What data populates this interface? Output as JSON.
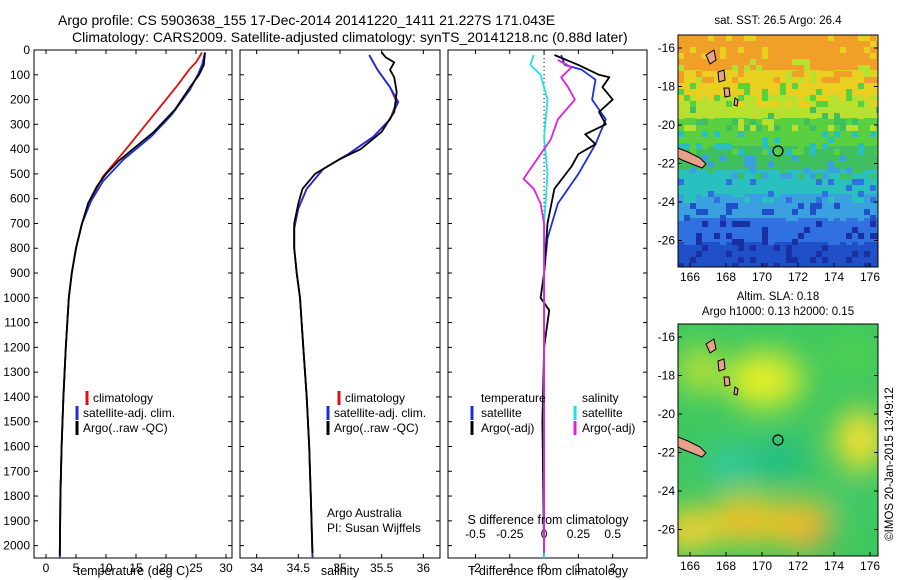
{
  "titles": {
    "line1": "Argo profile: CS 5903638_155 17-Dec-2014 20141220_1411 21.227S 171.043E",
    "line2": "Climatology: CARS2009. Satellite-adjusted climatology: synTS_20141218.nc (0.88d later)"
  },
  "colors": {
    "climatology": "#e01010",
    "satellite": "#1a2ee0",
    "argo": "#000000",
    "s_satellite": "#20e0e8",
    "s_argo": "#e020e0"
  },
  "chart_data": [
    {
      "type": "line",
      "panel": "temperature",
      "xlabel": "temperature (deg C)",
      "ylabel": "",
      "xlim": [
        -2,
        31
      ],
      "ylim": [
        2050,
        0
      ],
      "xticks": [
        0,
        5,
        10,
        15,
        20,
        25,
        30
      ],
      "yticks": [
        0,
        100,
        200,
        300,
        400,
        500,
        600,
        700,
        800,
        900,
        1000,
        1100,
        1200,
        1300,
        1400,
        1500,
        1600,
        1700,
        1800,
        1900,
        2000
      ],
      "legend": [
        "climatology",
        "satellite-adj. clim.",
        "Argo(..raw -QC)"
      ],
      "series": [
        {
          "name": "climatology",
          "color_key": "climatology",
          "points": [
            [
              26,
              10
            ],
            [
              25,
              50
            ],
            [
              24,
              75
            ],
            [
              22,
              140
            ],
            [
              19,
              230
            ],
            [
              16,
              320
            ],
            [
              13,
              410
            ],
            [
              9.5,
              510
            ],
            [
              7.5,
              600
            ],
            [
              6,
              700
            ],
            [
              5,
              800
            ],
            [
              4.3,
              900
            ],
            [
              3.8,
              1000
            ],
            [
              3.3,
              1200
            ],
            [
              2.9,
              1400
            ],
            [
              2.6,
              1600
            ],
            [
              2.4,
              1800
            ],
            [
              2.3,
              2050
            ]
          ]
        },
        {
          "name": "satellite-adj. clim.",
          "color_key": "satellite",
          "points": [
            [
              26.5,
              10
            ],
            [
              26,
              60
            ],
            [
              25.3,
              100
            ],
            [
              24,
              160
            ],
            [
              21,
              260
            ],
            [
              17.5,
              350
            ],
            [
              13,
              440
            ],
            [
              9.5,
              530
            ],
            [
              7.5,
              610
            ],
            [
              6,
              700
            ],
            [
              5,
              800
            ],
            [
              4.3,
              900
            ],
            [
              3.8,
              1000
            ],
            [
              3.3,
              1200
            ],
            [
              2.9,
              1400
            ],
            [
              2.6,
              1600
            ],
            [
              2.4,
              1800
            ],
            [
              2.3,
              2050
            ]
          ]
        },
        {
          "name": "Argo(..raw -QC)",
          "color_key": "argo",
          "points": [
            [
              26.5,
              10
            ],
            [
              26.3,
              60
            ],
            [
              25.5,
              100
            ],
            [
              24,
              150
            ],
            [
              21.5,
              240
            ],
            [
              18,
              330
            ],
            [
              14.5,
              400
            ],
            [
              12,
              450
            ],
            [
              10,
              500
            ],
            [
              8.5,
              550
            ],
            [
              7,
              620
            ],
            [
              6,
              700
            ],
            [
              5,
              800
            ],
            [
              4.3,
              900
            ],
            [
              3.8,
              1000
            ],
            [
              3.3,
              1200
            ],
            [
              2.9,
              1400
            ],
            [
              2.6,
              1600
            ],
            [
              2.4,
              1800
            ],
            [
              2.3,
              2040
            ]
          ]
        }
      ]
    },
    {
      "type": "line",
      "panel": "salinity",
      "xlabel": "salinity",
      "xlim": [
        33.8,
        36.2
      ],
      "ylim": [
        2050,
        0
      ],
      "xticks": [
        34,
        34.5,
        35,
        35.5,
        36
      ],
      "legend": [
        "climatology",
        "satellite-adj. clim.",
        "Argo(..raw -QC)"
      ],
      "series": [
        {
          "name": "climatology",
          "color_key": "climatology",
          "points": [
            [
              35.35,
              20
            ],
            [
              35.45,
              80
            ],
            [
              35.6,
              150
            ],
            [
              35.68,
              210
            ],
            [
              35.6,
              280
            ],
            [
              35.4,
              350
            ],
            [
              35.1,
              420
            ],
            [
              34.8,
              480
            ],
            [
              34.6,
              560
            ],
            [
              34.5,
              640
            ],
            [
              34.45,
              720
            ],
            [
              34.45,
              800
            ],
            [
              34.48,
              900
            ],
            [
              34.52,
              1000
            ],
            [
              34.56,
              1200
            ],
            [
              34.6,
              1400
            ],
            [
              34.63,
              1600
            ],
            [
              34.65,
              1800
            ],
            [
              34.67,
              2050
            ]
          ]
        },
        {
          "name": "satellite-adj. clim.",
          "color_key": "satellite",
          "points": [
            [
              35.35,
              20
            ],
            [
              35.45,
              80
            ],
            [
              35.6,
              150
            ],
            [
              35.7,
              210
            ],
            [
              35.6,
              280
            ],
            [
              35.4,
              350
            ],
            [
              35.1,
              420
            ],
            [
              34.8,
              480
            ],
            [
              34.6,
              560
            ],
            [
              34.5,
              640
            ],
            [
              34.45,
              720
            ],
            [
              34.45,
              800
            ],
            [
              34.48,
              900
            ],
            [
              34.52,
              1000
            ],
            [
              34.56,
              1200
            ],
            [
              34.6,
              1400
            ],
            [
              34.63,
              1600
            ],
            [
              34.65,
              1800
            ],
            [
              34.67,
              2050
            ]
          ]
        },
        {
          "name": "Argo(..raw -QC)",
          "color_key": "argo",
          "points": [
            [
              35.5,
              10
            ],
            [
              35.55,
              30
            ],
            [
              35.65,
              50
            ],
            [
              35.6,
              80
            ],
            [
              35.65,
              110
            ],
            [
              35.68,
              170
            ],
            [
              35.65,
              250
            ],
            [
              35.5,
              330
            ],
            [
              35.25,
              400
            ],
            [
              35.0,
              440
            ],
            [
              34.7,
              500
            ],
            [
              34.55,
              560
            ],
            [
              34.5,
              620
            ],
            [
              34.45,
              700
            ],
            [
              34.45,
              800
            ],
            [
              34.48,
              900
            ],
            [
              34.52,
              1000
            ],
            [
              34.56,
              1200
            ],
            [
              34.6,
              1400
            ],
            [
              34.63,
              1600
            ],
            [
              34.65,
              1800
            ],
            [
              34.67,
              2030
            ]
          ]
        }
      ]
    },
    {
      "type": "line",
      "panel": "differences",
      "xlabel_top": "S difference from climatology",
      "xlabel": "T difference from climatology",
      "xlim": [
        -2.8,
        3
      ],
      "ylim": [
        2050,
        0
      ],
      "xticks": [
        -2,
        -1,
        0,
        1,
        2
      ],
      "xticks_top": [
        "-0.5",
        "-0.25",
        "0",
        "0.25",
        "0.5"
      ],
      "legend_t": [
        "temperature",
        "satellite",
        "Argo(-adj)"
      ],
      "legend_s": [
        "salinity",
        "satellite",
        "Argo(-adj)"
      ],
      "series": [
        {
          "name": "T satellite",
          "color_key": "satellite",
          "points": [
            [
              0.5,
              20
            ],
            [
              0.6,
              60
            ],
            [
              1.1,
              80
            ],
            [
              1.5,
              120
            ],
            [
              1.4,
              200
            ],
            [
              1.8,
              280
            ],
            [
              1.5,
              380
            ],
            [
              1.0,
              500
            ],
            [
              0.4,
              620
            ],
            [
              0.1,
              760
            ],
            [
              0,
              900
            ],
            [
              0,
              2050
            ]
          ]
        },
        {
          "name": "T Argo(-adj)",
          "color_key": "argo",
          "points": [
            [
              0.3,
              20
            ],
            [
              1.0,
              60
            ],
            [
              1.6,
              100
            ],
            [
              1.9,
              110
            ],
            [
              1.7,
              150
            ],
            [
              2.0,
              200
            ],
            [
              1.6,
              250
            ],
            [
              1.8,
              300
            ],
            [
              1.2,
              340
            ],
            [
              1.5,
              380
            ],
            [
              1.0,
              420
            ],
            [
              0.8,
              470
            ],
            [
              0.3,
              560
            ],
            [
              0.1,
              700
            ],
            [
              0,
              900
            ],
            [
              -0.1,
              1000
            ],
            [
              0.15,
              1050
            ],
            [
              0,
              1200
            ],
            [
              -0.05,
              1500
            ],
            [
              0,
              2040
            ]
          ]
        },
        {
          "name": "S satellite",
          "color_key": "s_satellite",
          "points": [
            [
              -0.3,
              20
            ],
            [
              -0.4,
              60
            ],
            [
              -0.1,
              100
            ],
            [
              0.1,
              200
            ],
            [
              0.0,
              350
            ],
            [
              0.1,
              500
            ],
            [
              0.0,
              700
            ],
            [
              0,
              2050
            ]
          ]
        },
        {
          "name": "S Argo(-adj)",
          "color_key": "s_argo",
          "points": [
            [
              0.4,
              40
            ],
            [
              0.8,
              70
            ],
            [
              0.5,
              110
            ],
            [
              0.7,
              150
            ],
            [
              0.9,
              200
            ],
            [
              0.4,
              280
            ],
            [
              0.2,
              360
            ],
            [
              -0.1,
              420
            ],
            [
              -0.6,
              520
            ],
            [
              -0.3,
              560
            ],
            [
              -0.1,
              620
            ],
            [
              0,
              700
            ],
            [
              0,
              2030
            ]
          ]
        }
      ]
    }
  ],
  "legend_temp": {
    "climatology": "climatology",
    "satellite": "satellite-adj. clim.",
    "argo": "Argo(..raw -QC)"
  },
  "legend_sal": {
    "climatology": "climatology",
    "satellite": "satellite-adj. clim.",
    "argo": "Argo(..raw -QC)"
  },
  "legend_diff": {
    "t_head": "temperature",
    "t_sat": "satellite",
    "t_argo": "Argo(-adj)",
    "s_head": "salinity",
    "s_sat": "satellite",
    "s_argo": "Argo(-adj)"
  },
  "credit": {
    "line1": "Argo Australia",
    "line2": "PI: Susan Wijffels"
  },
  "maps": {
    "sst": {
      "title": "sat. SST: 26.5  Argo: 26.4",
      "xticks": [
        "166",
        "168",
        "170",
        "172",
        "174",
        "176"
      ],
      "yticks": [
        "-16",
        "-18",
        "-20",
        "-22",
        "-24",
        "-26"
      ]
    },
    "sla": {
      "title1": "Altim. SLA: 0.18",
      "title2": "Argo h1000: 0.13 h2000: 0.15",
      "xticks": [
        "166",
        "168",
        "170",
        "172",
        "174",
        "176"
      ],
      "yticks": [
        "-16",
        "-18",
        "-20",
        "-22",
        "-24",
        "-26"
      ]
    }
  },
  "watermark": "©IMOS 20-Jan-2015 13:49:12"
}
